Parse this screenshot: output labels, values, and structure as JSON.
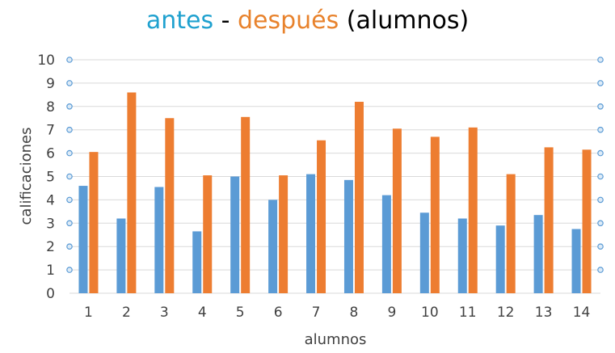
{
  "chart_data": {
    "type": "bar",
    "title_parts": [
      {
        "text": "antes",
        "color": "#1FA1CF"
      },
      {
        "text": " - ",
        "color": "#000000"
      },
      {
        "text": "después",
        "color": "#E8822C"
      },
      {
        "text": " (alumnos)",
        "color": "#000000"
      }
    ],
    "xlabel": "alumnos",
    "ylabel": "calificaciones",
    "categories": [
      "1",
      "2",
      "3",
      "4",
      "5",
      "6",
      "7",
      "8",
      "9",
      "10",
      "11",
      "12",
      "13",
      "14"
    ],
    "ylim": [
      0,
      10
    ],
    "yticks": [
      "0",
      "1",
      "2",
      "3",
      "4",
      "5",
      "6",
      "7",
      "8",
      "9",
      "10"
    ],
    "grid": true,
    "series": [
      {
        "color": "#5B9BD5",
        "values": [
          4.6,
          3.2,
          4.55,
          2.65,
          5.0,
          4.0,
          5.1,
          4.85,
          4.2,
          3.45,
          3.2,
          2.9,
          3.35,
          2.75
        ]
      },
      {
        "color": "#ED7D31",
        "values": [
          6.05,
          8.6,
          7.5,
          5.05,
          7.55,
          5.05,
          6.55,
          8.2,
          7.05,
          6.7,
          7.1,
          5.1,
          6.25,
          6.15
        ]
      }
    ],
    "colors": {
      "grid": "#D9D9D9",
      "marker_fill": "#DDEBF7",
      "marker_stroke": "#5B9BD5",
      "text": "#404040"
    }
  }
}
